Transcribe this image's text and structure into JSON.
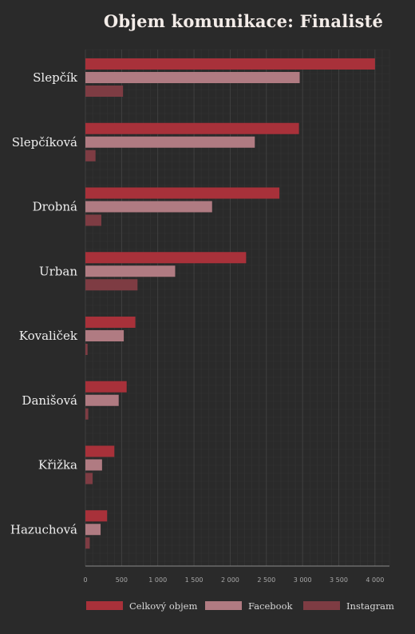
{
  "chart_data": {
    "type": "bar",
    "orientation": "horizontal",
    "title": "Objem komunikace: Finalisté",
    "categories": [
      "Slepčík",
      "Slepčíková",
      "Drobná",
      "Urban",
      "Kovaliček",
      "Danišová",
      "Křižka",
      "Hazuchová"
    ],
    "series": [
      {
        "name": "Celkový objem",
        "color": "#a8313a",
        "values": [
          4000,
          2950,
          2680,
          2220,
          690,
          570,
          400,
          300
        ]
      },
      {
        "name": "Facebook",
        "color": "#b07b82",
        "values": [
          2960,
          2340,
          1750,
          1240,
          530,
          460,
          230,
          210
        ]
      },
      {
        "name": "Instagram",
        "color": "#7e3c43",
        "values": [
          520,
          140,
          220,
          720,
          30,
          40,
          100,
          60
        ]
      }
    ],
    "xlim": [
      0,
      4200
    ],
    "x_ticks": [
      0,
      500,
      1000,
      1500,
      2000,
      2500,
      3000,
      3500,
      4000
    ],
    "x_tick_labels": [
      "0",
      "500",
      "1 000",
      "1 500",
      "2 000",
      "2 500",
      "3 000",
      "3 500",
      "4 000"
    ],
    "xlabel": "",
    "ylabel": "",
    "grid": true,
    "legend_position": "bottom",
    "colors": {
      "background": "#2a2a2a",
      "grid_minor": "#353535",
      "grid_major": "#444444",
      "baseline": "#8a8a8a"
    }
  }
}
